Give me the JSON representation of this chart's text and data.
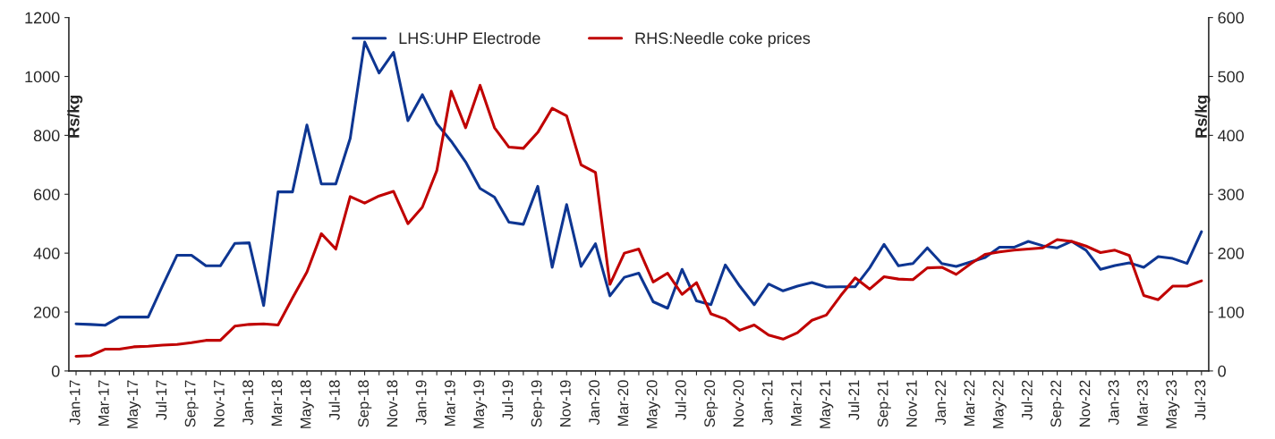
{
  "chart_data": {
    "type": "line",
    "categories": [
      "Jan-17",
      null,
      "Mar-17",
      null,
      "May-17",
      null,
      "Jul-17",
      null,
      "Sep-17",
      null,
      "Nov-17",
      null,
      "Jan-18",
      null,
      "Mar-18",
      null,
      "May-18",
      null,
      "Jul-18",
      null,
      "Sep-18",
      null,
      "Nov-18",
      null,
      "Jan-19",
      null,
      "Mar-19",
      null,
      "May-19",
      null,
      "Jul-19",
      null,
      "Sep-19",
      null,
      "Nov-19",
      null,
      "Jan-20",
      null,
      "Mar-20",
      null,
      "May-20",
      null,
      "Jul-20",
      null,
      "Sep-20",
      null,
      "Nov-20",
      null,
      "Jan-21",
      null,
      "Mar-21",
      null,
      "May-21",
      null,
      "Jul-21",
      null,
      "Sep-21",
      null,
      "Nov-21",
      null,
      "Jan-22",
      null,
      "Mar-22",
      null,
      "May-22",
      null,
      "Jul-22",
      null,
      "Sep-22",
      null,
      "Nov-22",
      null,
      "Jan-23",
      null,
      "Mar-23",
      null,
      "May-23",
      null,
      "Jul-23"
    ],
    "series": [
      {
        "name": "LHS:UHP Electrode",
        "color": "#0e3692",
        "values": [
          160,
          158,
          155,
          183,
          183,
          183,
          290,
          393,
          393,
          357,
          357,
          433,
          435,
          222,
          608,
          608,
          835,
          635,
          635,
          790,
          1117,
          1012,
          1082,
          850,
          938,
          840,
          780,
          710,
          620,
          590,
          505,
          498,
          627,
          352,
          565,
          355,
          432,
          255,
          318,
          332,
          235,
          213,
          345,
          238,
          225,
          360,
          288,
          225,
          295,
          272,
          288,
          300,
          285,
          286,
          286,
          350,
          430,
          357,
          365,
          418,
          365,
          355,
          370,
          385,
          420,
          420,
          440,
          425,
          418,
          440,
          410,
          345,
          358,
          367,
          352,
          388,
          382,
          365,
          473
        ]
      },
      {
        "name": "RHS:Needle coke prices",
        "color": "#c00000",
        "axis": "y2",
        "values": [
          25,
          26,
          37,
          37,
          41,
          42,
          44,
          45,
          48,
          52,
          52,
          76,
          79,
          80,
          78,
          124,
          168,
          233,
          207,
          296,
          285,
          297,
          305,
          250,
          278,
          340,
          475,
          413,
          485,
          413,
          380,
          378,
          405,
          446,
          433,
          350,
          337,
          147,
          200,
          207,
          151,
          166,
          130,
          150,
          97,
          88,
          69,
          78,
          61,
          54,
          65,
          86,
          95,
          128,
          158,
          139,
          160,
          156,
          155,
          175,
          176,
          164,
          182,
          198,
          202,
          205,
          207,
          209,
          223,
          220,
          212,
          201,
          205,
          196,
          128,
          121,
          144,
          144,
          153
        ]
      }
    ],
    "ylabel": "Rs/kg",
    "y2label": "Rs/kg",
    "ylim": [
      0,
      1200
    ],
    "yticks": [
      0,
      200,
      400,
      600,
      800,
      1000,
      1200
    ],
    "y2lim": [
      0,
      600
    ],
    "y2ticks": [
      0,
      100,
      200,
      300,
      400,
      500,
      600
    ],
    "legend": "top",
    "grid": false,
    "marker": "none",
    "line_style": "solid"
  }
}
